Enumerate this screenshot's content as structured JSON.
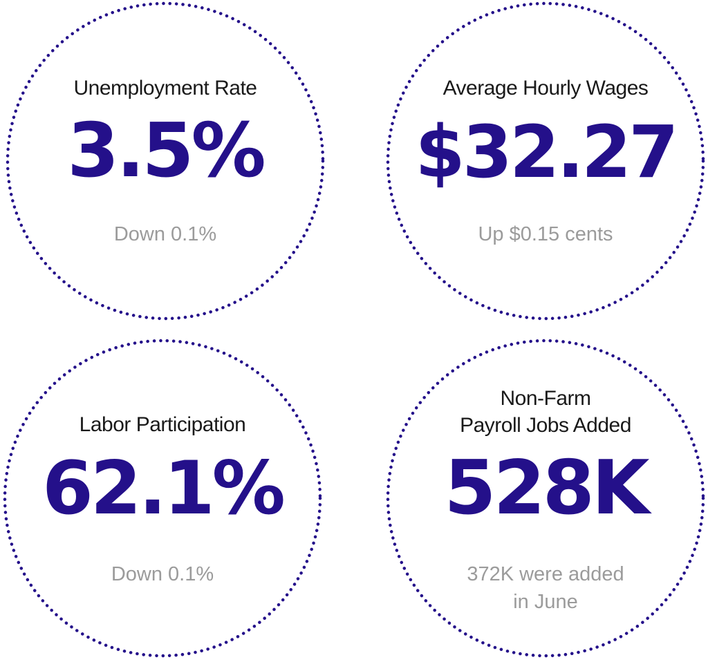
{
  "colors": {
    "accent": "#24108a",
    "dots": "#24108a",
    "label": "#1a1a1a",
    "subtext": "#9b9b9b",
    "background": "#ffffff"
  },
  "stats": [
    {
      "label_lines": [
        "Unemployment Rate"
      ],
      "value": "3.5%",
      "sub_lines": [
        "Down 0.1%"
      ]
    },
    {
      "label_lines": [
        "Average Hourly Wages"
      ],
      "value": "$32.27",
      "sub_lines": [
        "Up $0.15 cents"
      ]
    },
    {
      "label_lines": [
        "Labor Participation"
      ],
      "value": "62.1%",
      "sub_lines": [
        "Down 0.1%"
      ]
    },
    {
      "label_lines": [
        "Non-Farm",
        "Payroll Jobs Added"
      ],
      "value": "528K",
      "sub_lines": [
        "372K were added",
        "in June"
      ]
    }
  ]
}
